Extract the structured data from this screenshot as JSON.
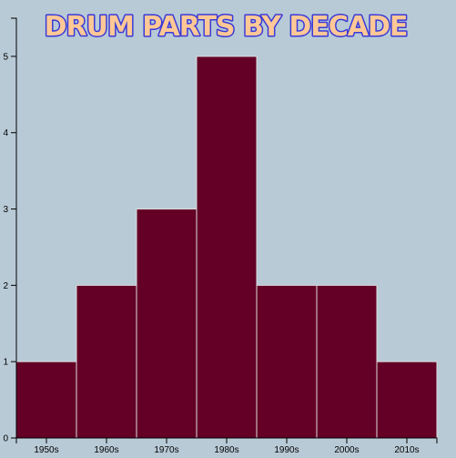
{
  "colors": {
    "background": "#b8cad6",
    "bar_fill": "#640025",
    "bar_stroke": "#dcdcdc",
    "title_fill": "#ffc896",
    "title_stroke": "#3a3ad8"
  },
  "chart_data": {
    "type": "bar",
    "title": "DRUM PARTS BY DECADE",
    "xlabel": "",
    "ylabel": "",
    "categories": [
      "1950s",
      "1960s",
      "1970s",
      "1980s",
      "1990s",
      "2000s",
      "2010s"
    ],
    "values": [
      1,
      2,
      3,
      5,
      2,
      2,
      1
    ],
    "ylim": [
      0,
      5.5
    ],
    "yticks": [
      "0",
      "1",
      "2",
      "3",
      "4",
      "5"
    ],
    "grid": false,
    "legend": "none"
  }
}
